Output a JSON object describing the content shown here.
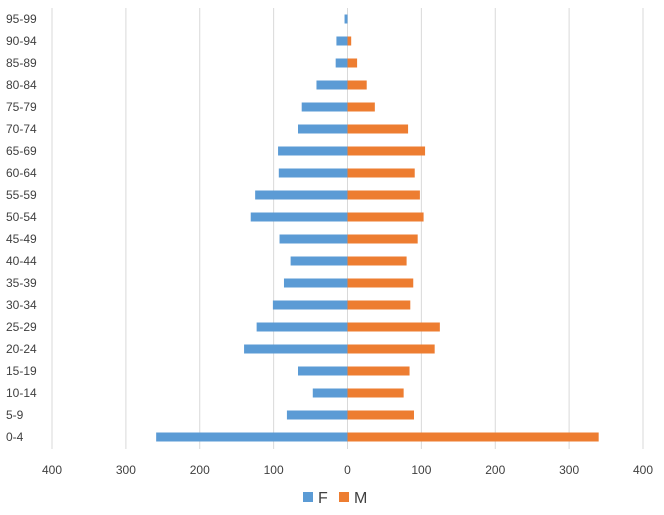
{
  "chart_data": {
    "type": "bar",
    "orientation": "horizontal-diverging",
    "title": "",
    "xlabel": "",
    "ylabel": "",
    "xlim": [
      -400,
      400
    ],
    "x_ticks": [
      -400,
      -300,
      -200,
      -100,
      0,
      100,
      200,
      300,
      400
    ],
    "x_tick_labels": [
      "400",
      "300",
      "200",
      "100",
      "0",
      "100",
      "200",
      "300",
      "400"
    ],
    "grid": true,
    "legend_position": "bottom",
    "categories": [
      "95-99",
      "90-94",
      "85-89",
      "80-84",
      "75-79",
      "70-74",
      "65-69",
      "60-64",
      "55-59",
      "50-54",
      "45-49",
      "40-44",
      "35-39",
      "30-34",
      "25-29",
      "20-24",
      "15-19",
      "10-14",
      "5-9",
      "0-4"
    ],
    "series": [
      {
        "name": "F",
        "color": "#5b9bd5",
        "direction": "left",
        "values": [
          4,
          15,
          16,
          42,
          62,
          67,
          94,
          93,
          125,
          131,
          92,
          77,
          86,
          101,
          123,
          140,
          67,
          47,
          82,
          259
        ]
      },
      {
        "name": "M",
        "color": "#ed7d31",
        "direction": "right",
        "values": [
          0,
          5,
          13,
          26,
          37,
          82,
          105,
          91,
          98,
          103,
          95,
          80,
          89,
          85,
          125,
          118,
          84,
          76,
          90,
          340
        ]
      }
    ]
  }
}
